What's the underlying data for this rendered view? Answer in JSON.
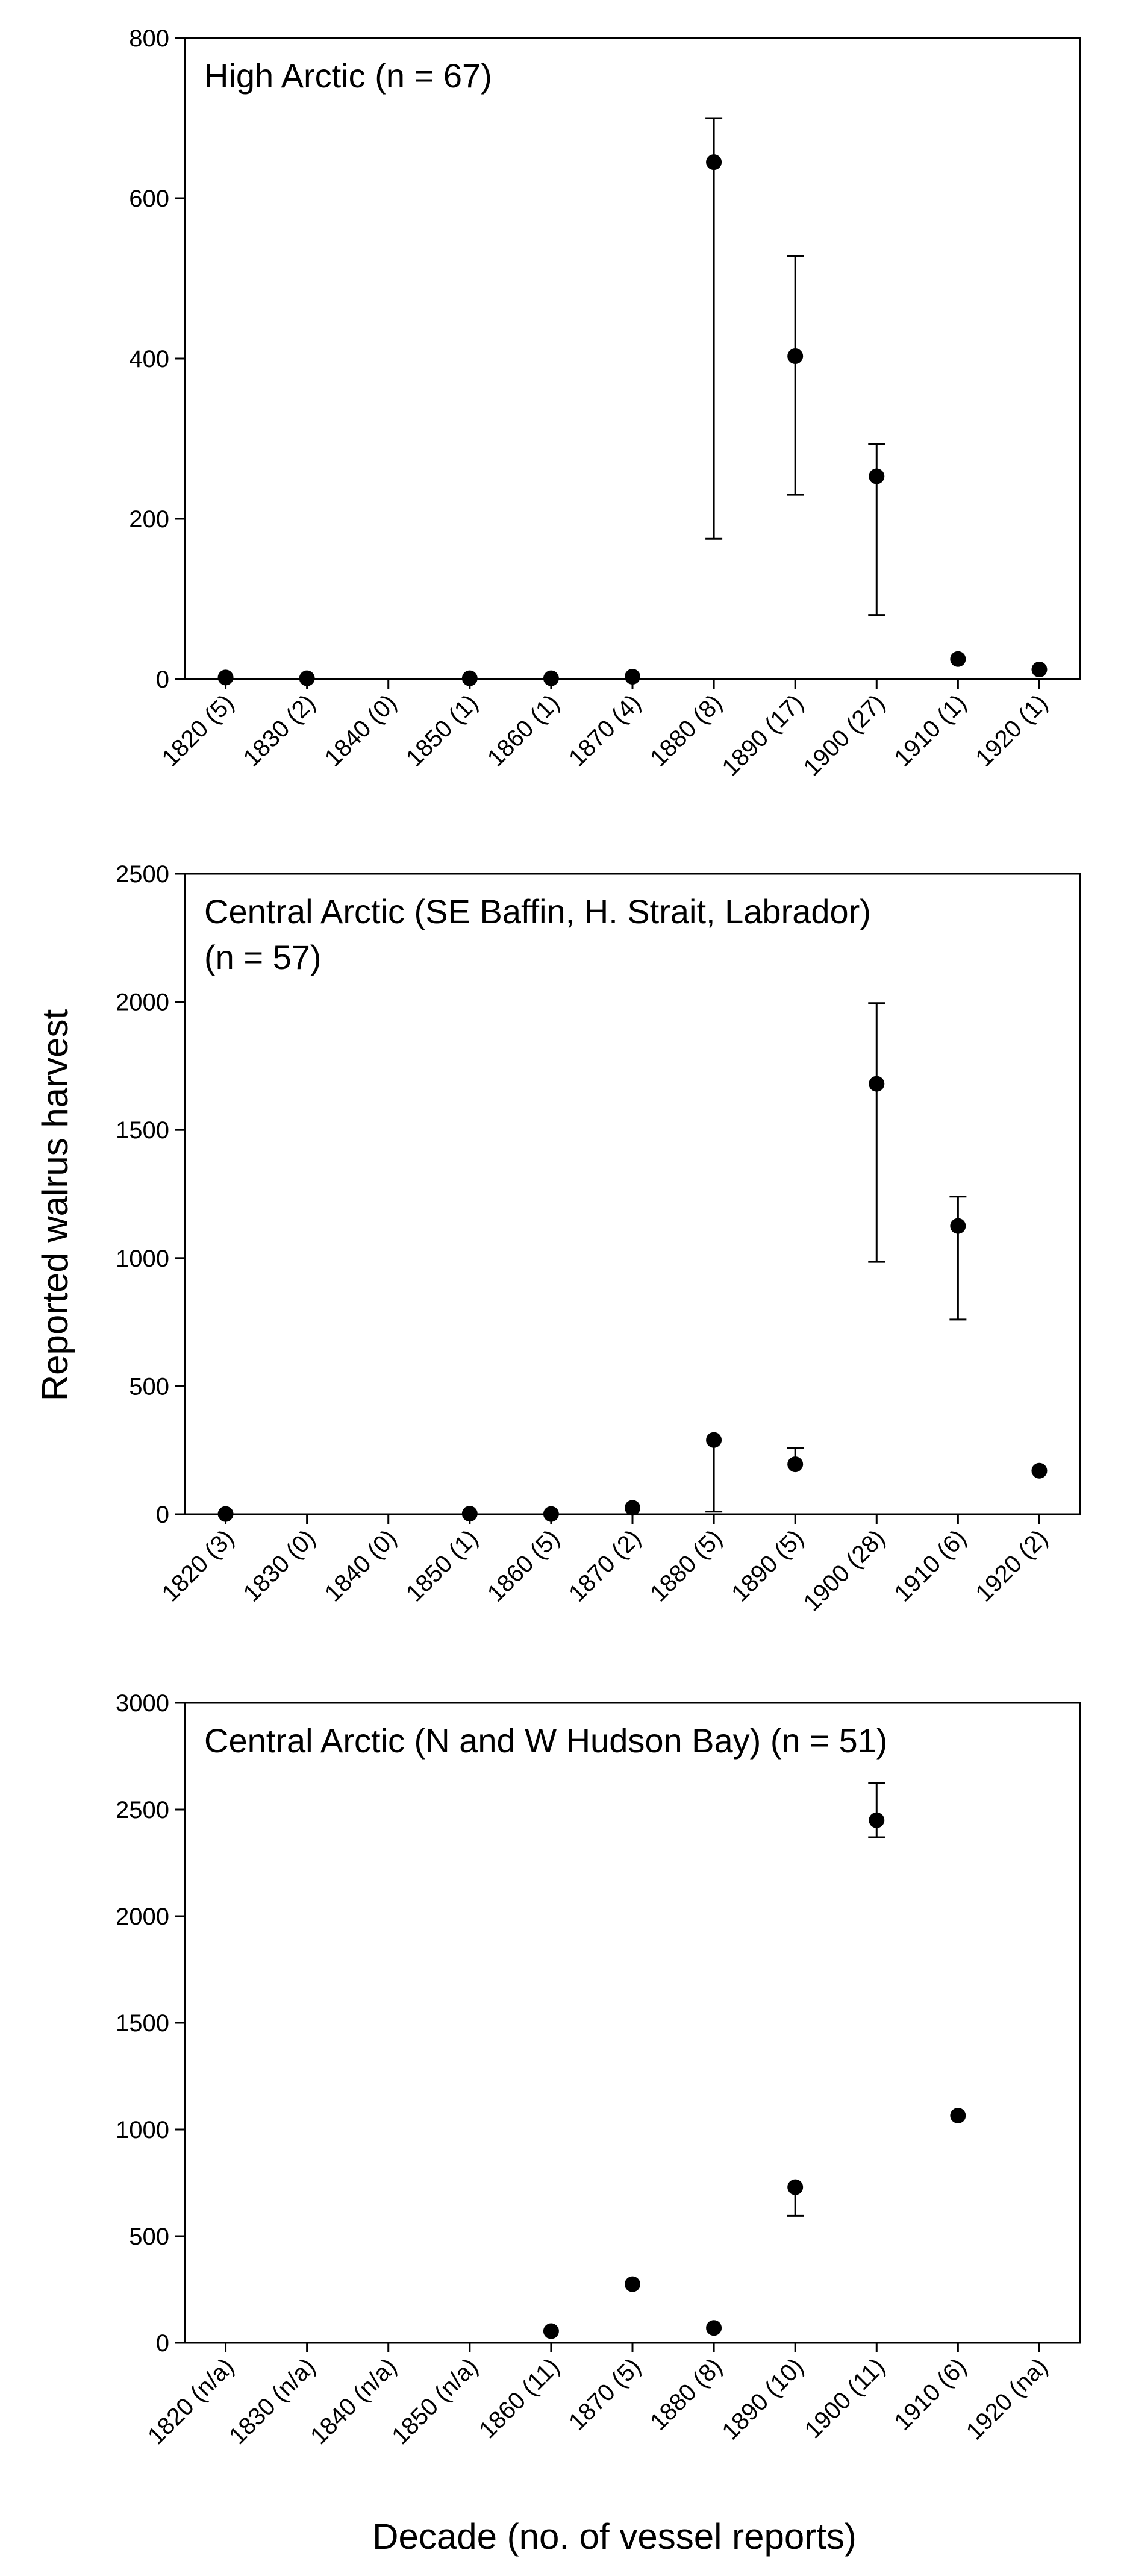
{
  "figure": {
    "ylabel": "Reported walrus harvest",
    "xlabel": "Decade (no. of vessel reports)"
  },
  "chart_data": [
    {
      "type": "scatter",
      "title_lines": [
        "High Arctic (n = 67)"
      ],
      "categories": [
        "1820 (5)",
        "1830 (2)",
        "1840 (0)",
        "1850 (1)",
        "1860 (1)",
        "1870 (4)",
        "1880 (8)",
        "1890 (17)",
        "1900 (27)",
        "1910 (1)",
        "1920 (1)"
      ],
      "values": [
        2,
        1,
        null,
        1,
        1,
        3,
        645,
        403,
        253,
        25,
        12
      ],
      "err_low": [
        null,
        null,
        null,
        null,
        null,
        null,
        175,
        230,
        80,
        null,
        null
      ],
      "err_high": [
        null,
        null,
        null,
        null,
        null,
        null,
        700,
        528,
        293,
        null,
        null
      ],
      "yticks": [
        0,
        200,
        400,
        600,
        800
      ],
      "ylim": [
        0,
        800
      ]
    },
    {
      "type": "scatter",
      "title_lines": [
        "Central Arctic (SE Baffin, H. Strait, Labrador)",
        "(n = 57)"
      ],
      "categories": [
        "1820 (3)",
        "1830 (0)",
        "1840 (0)",
        "1850 (1)",
        "1860 (5)",
        "1870 (2)",
        "1880 (5)",
        "1890 (5)",
        "1900 (28)",
        "1910 (6)",
        "1920 (2)"
      ],
      "values": [
        1,
        null,
        null,
        2,
        1,
        25,
        290,
        195,
        1680,
        1125,
        170
      ],
      "err_low": [
        null,
        null,
        null,
        null,
        null,
        null,
        10,
        null,
        985,
        760,
        null
      ],
      "err_high": [
        null,
        null,
        null,
        null,
        null,
        null,
        null,
        260,
        1995,
        1240,
        null
      ],
      "yticks": [
        0,
        500,
        1000,
        1500,
        2000,
        2500
      ],
      "ylim": [
        0,
        2500
      ]
    },
    {
      "type": "scatter",
      "title_lines": [
        "Central Arctic (N and W Hudson Bay) (n = 51)"
      ],
      "categories": [
        "1820 (n/a)",
        "1830 (n/a)",
        "1840 (n/a)",
        "1850 (n/a)",
        "1860 (11)",
        "1870 (5)",
        "1880 (8)",
        "1890 (10)",
        "1900 (11)",
        "1910 (6)",
        "1920 (na)"
      ],
      "values": [
        null,
        null,
        null,
        null,
        55,
        275,
        70,
        730,
        2450,
        1065,
        null
      ],
      "err_low": [
        null,
        null,
        null,
        null,
        null,
        null,
        null,
        595,
        2370,
        null,
        null
      ],
      "err_high": [
        null,
        null,
        null,
        null,
        null,
        null,
        null,
        null,
        2625,
        null,
        null
      ],
      "yticks": [
        0,
        500,
        1000,
        1500,
        2000,
        2500,
        3000
      ],
      "ylim": [
        0,
        3000
      ]
    }
  ]
}
